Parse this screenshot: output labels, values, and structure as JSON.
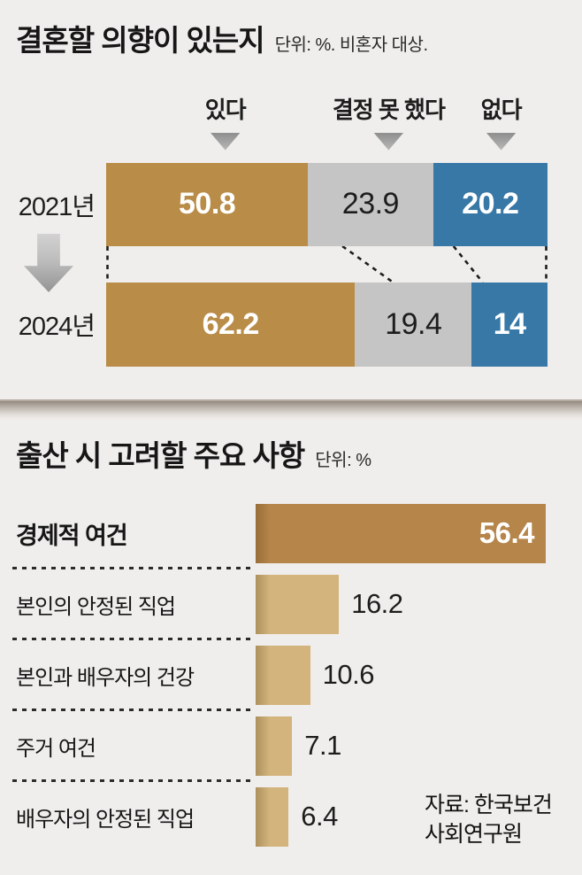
{
  "colors": {
    "yes": "#b98c48",
    "undecided": "#c5c5c5",
    "no": "#3878a6",
    "bar_lead": "#b5854a",
    "bar_light": "#d2b47c",
    "arrow_gray": "#9a9a9a",
    "background": "#f0eeec"
  },
  "marriage_chart": {
    "title": "결혼할 의향이 있는지",
    "unit": "단위: %. 비혼자 대상.",
    "legend": [
      {
        "label": "있다"
      },
      {
        "label": "결정 못 했다"
      },
      {
        "label": "없다"
      }
    ],
    "rows": [
      {
        "year": "2021년",
        "values": [
          50.8,
          23.9,
          20.2
        ],
        "display": [
          "50.8",
          "23.9",
          "20.2"
        ]
      },
      {
        "year": "2024년",
        "values": [
          62.2,
          19.4,
          14
        ],
        "display": [
          "62.2",
          "19.4",
          "14"
        ]
      }
    ]
  },
  "birth_chart": {
    "title": "출산 시 고려할 주요 사항",
    "unit": "단위: %",
    "rows": [
      {
        "label": "경제적 여건",
        "value": 56.4,
        "display": "56.4"
      },
      {
        "label": "본인의 안정된 직업",
        "value": 16.2,
        "display": "16.2"
      },
      {
        "label": "본인과 배우자의 건강",
        "value": 10.6,
        "display": "10.6"
      },
      {
        "label": "주거 여건",
        "value": 7.1,
        "display": "7.1"
      },
      {
        "label": "배우자의 안정된 직업",
        "value": 6.4,
        "display": "6.4"
      }
    ]
  },
  "source": {
    "line1": "자료: 한국보건",
    "line2": "사회연구원"
  },
  "chart_data": [
    {
      "type": "bar",
      "subtype": "stacked-horizontal",
      "title": "결혼할 의향이 있는지",
      "unit": "%",
      "note": "비혼자 대상",
      "categories": [
        "2021년",
        "2024년"
      ],
      "series": [
        {
          "name": "있다",
          "values": [
            50.8,
            62.2
          ],
          "color": "#b98c48"
        },
        {
          "name": "결정 못 했다",
          "values": [
            23.9,
            19.4
          ],
          "color": "#c5c5c5"
        },
        {
          "name": "없다",
          "values": [
            20.2,
            14
          ],
          "color": "#3878a6"
        }
      ],
      "legend_position": "top",
      "grid": false
    },
    {
      "type": "bar",
      "subtype": "horizontal",
      "title": "출산 시 고려할 주요 사항",
      "unit": "%",
      "categories": [
        "경제적 여건",
        "본인의 안정된 직업",
        "본인과 배우자의 건강",
        "주거 여건",
        "배우자의 안정된 직업"
      ],
      "values": [
        56.4,
        16.2,
        10.6,
        7.1,
        6.4
      ],
      "xlim": [
        0,
        60
      ],
      "grid": false,
      "source": "자료: 한국보건사회연구원"
    }
  ]
}
